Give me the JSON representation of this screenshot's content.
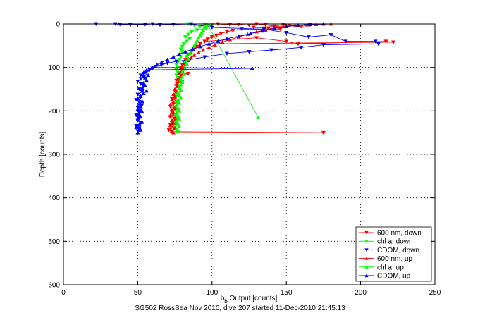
{
  "chart_data": {
    "type": "scatter",
    "caption": "SG502 RossSea Nov 2010, dive 207 started 11-Dec-2010 21:45:13",
    "xlabel_main": "b",
    "xlabel_sub": "b",
    "xlabel_rest": " Output [counts]",
    "ylabel": "Depth [counts]",
    "xlim": [
      0,
      250
    ],
    "ylim": [
      0,
      600
    ],
    "y_inverted": true,
    "xticks": [
      "0",
      "50",
      "100",
      "150",
      "200",
      "250"
    ],
    "yticks": [
      "0",
      "100",
      "200",
      "300",
      "400",
      "500",
      "600"
    ],
    "grid": true,
    "grid_style": "dotted",
    "legend_position": "bottom-right",
    "colors": {
      "red": "#ff0000",
      "green": "#00ff00",
      "blue": "#0000ff"
    },
    "series": [
      {
        "name": "600 nm, down",
        "color": "#ff0000",
        "marker": "triangle-down",
        "points": [
          [
            104,
            0
          ],
          [
            112,
            2
          ],
          [
            118,
            1
          ],
          [
            125,
            3
          ],
          [
            130,
            0
          ],
          [
            136,
            2
          ],
          [
            142,
            5
          ],
          [
            148,
            1
          ],
          [
            152,
            3
          ],
          [
            160,
            6
          ],
          [
            166,
            2
          ],
          [
            128,
            8
          ],
          [
            138,
            10
          ],
          [
            146,
            12
          ],
          [
            120,
            12
          ],
          [
            114,
            15
          ],
          [
            110,
            18
          ],
          [
            106,
            22
          ],
          [
            103,
            26
          ],
          [
            100,
            30
          ],
          [
            97,
            35
          ],
          [
            95,
            40
          ],
          [
            130,
            32
          ],
          [
            150,
            40
          ],
          [
            158,
            46
          ],
          [
            217,
            40
          ],
          [
            222,
            42
          ],
          [
            92,
            46
          ],
          [
            90,
            52
          ],
          [
            88,
            58
          ],
          [
            86,
            64
          ],
          [
            84,
            70
          ],
          [
            83,
            76
          ],
          [
            82,
            82
          ],
          [
            81,
            88
          ],
          [
            80,
            94
          ],
          [
            79,
            100
          ],
          [
            80,
            106
          ],
          [
            78,
            112
          ],
          [
            84,
            114
          ],
          [
            79,
            118
          ],
          [
            78,
            124
          ],
          [
            76,
            130
          ],
          [
            80,
            132
          ],
          [
            77,
            136
          ],
          [
            76,
            142
          ],
          [
            78,
            148
          ],
          [
            75,
            154
          ],
          [
            77,
            160
          ],
          [
            75,
            166
          ],
          [
            73,
            172
          ],
          [
            76,
            178
          ],
          [
            74,
            184
          ],
          [
            72,
            190
          ],
          [
            75,
            196
          ],
          [
            73,
            202
          ],
          [
            74,
            208
          ],
          [
            72,
            214
          ],
          [
            75,
            220
          ],
          [
            73,
            226
          ],
          [
            72,
            232
          ],
          [
            74,
            238
          ],
          [
            71,
            244
          ],
          [
            73,
            248
          ],
          [
            175,
            250
          ]
        ]
      },
      {
        "name": "chl a, down",
        "color": "#00ff00",
        "marker": "triangle-down",
        "points": [
          [
            84,
            0
          ],
          [
            88,
            3
          ],
          [
            92,
            6
          ],
          [
            95,
            2
          ],
          [
            98,
            5
          ],
          [
            100,
            1
          ],
          [
            96,
            10
          ],
          [
            90,
            14
          ],
          [
            86,
            18
          ],
          [
            84,
            24
          ],
          [
            82,
            30
          ],
          [
            85,
            34
          ],
          [
            83,
            40
          ],
          [
            81,
            46
          ],
          [
            80,
            52
          ],
          [
            79,
            58
          ],
          [
            80,
            64
          ],
          [
            78,
            70
          ],
          [
            79,
            76
          ],
          [
            78,
            82
          ],
          [
            77,
            88
          ],
          [
            76,
            94
          ],
          [
            77,
            100
          ],
          [
            76,
            106
          ],
          [
            77,
            112
          ],
          [
            76,
            118
          ],
          [
            77,
            124
          ],
          [
            78,
            130
          ],
          [
            76,
            136
          ],
          [
            77,
            142
          ],
          [
            78,
            148
          ],
          [
            76,
            154
          ],
          [
            77,
            160
          ],
          [
            76,
            166
          ],
          [
            75,
            172
          ],
          [
            77,
            178
          ],
          [
            76,
            184
          ],
          [
            75,
            190
          ],
          [
            77,
            196
          ],
          [
            76,
            202
          ],
          [
            75,
            208
          ],
          [
            77,
            214
          ],
          [
            76,
            220
          ],
          [
            75,
            226
          ],
          [
            76,
            232
          ],
          [
            75,
            238
          ],
          [
            76,
            244
          ],
          [
            77,
            248
          ]
        ]
      },
      {
        "name": "CDOM, down",
        "color": "#0000ff",
        "marker": "triangle-down",
        "points": [
          [
            22,
            0
          ],
          [
            35,
            0
          ],
          [
            38,
            1
          ],
          [
            45,
            2
          ],
          [
            55,
            1
          ],
          [
            60,
            0
          ],
          [
            65,
            2
          ],
          [
            74,
            1
          ],
          [
            86,
            0
          ],
          [
            100,
            8
          ],
          [
            135,
            12
          ],
          [
            150,
            20
          ],
          [
            165,
            30
          ],
          [
            180,
            25
          ],
          [
            190,
            40
          ],
          [
            210,
            40
          ],
          [
            212,
            46
          ],
          [
            175,
            48
          ],
          [
            160,
            54
          ],
          [
            140,
            60
          ],
          [
            125,
            64
          ],
          [
            110,
            68
          ],
          [
            95,
            76
          ],
          [
            85,
            82
          ],
          [
            76,
            86
          ],
          [
            70,
            90
          ],
          [
            66,
            94
          ],
          [
            62,
            98
          ],
          [
            60,
            102
          ],
          [
            58,
            106
          ],
          [
            56,
            110
          ],
          [
            54,
            114
          ],
          [
            52,
            118
          ],
          [
            54,
            122
          ],
          [
            52,
            126
          ],
          [
            50,
            132
          ],
          [
            52,
            138
          ],
          [
            54,
            144
          ],
          [
            51,
            150
          ],
          [
            53,
            156
          ],
          [
            50,
            162
          ],
          [
            52,
            168
          ],
          [
            49,
            174
          ],
          [
            51,
            180
          ],
          [
            53,
            186
          ],
          [
            50,
            192
          ],
          [
            52,
            198
          ],
          [
            51,
            204
          ],
          [
            49,
            210
          ],
          [
            51,
            216
          ],
          [
            50,
            222
          ],
          [
            52,
            228
          ],
          [
            49,
            234
          ],
          [
            51,
            240
          ],
          [
            50,
            246
          ]
        ]
      },
      {
        "name": "600 nm, up",
        "color": "#ff0000",
        "marker": "triangle-up",
        "points": [
          [
            74,
            250
          ],
          [
            73,
            246
          ],
          [
            75,
            240
          ],
          [
            72,
            234
          ],
          [
            74,
            228
          ],
          [
            73,
            222
          ],
          [
            75,
            216
          ],
          [
            72,
            210
          ],
          [
            74,
            204
          ],
          [
            73,
            198
          ],
          [
            75,
            192
          ],
          [
            72,
            186
          ],
          [
            74,
            180
          ],
          [
            73,
            174
          ],
          [
            75,
            168
          ],
          [
            74,
            162
          ],
          [
            76,
            156
          ],
          [
            75,
            150
          ],
          [
            77,
            144
          ],
          [
            76,
            138
          ],
          [
            78,
            132
          ],
          [
            77,
            126
          ],
          [
            79,
            120
          ],
          [
            78,
            114
          ],
          [
            80,
            108
          ],
          [
            79,
            102
          ],
          [
            81,
            96
          ],
          [
            82,
            90
          ],
          [
            84,
            84
          ],
          [
            86,
            78
          ],
          [
            88,
            72
          ],
          [
            91,
            66
          ],
          [
            94,
            60
          ],
          [
            98,
            54
          ],
          [
            102,
            48
          ],
          [
            107,
            42
          ],
          [
            112,
            36
          ],
          [
            118,
            30
          ],
          [
            124,
            24
          ],
          [
            130,
            18
          ],
          [
            136,
            14
          ],
          [
            142,
            10
          ],
          [
            148,
            6
          ],
          [
            156,
            4
          ],
          [
            164,
            2
          ],
          [
            170,
            1
          ],
          [
            180,
            0
          ]
        ]
      },
      {
        "name": "chl a, up",
        "color": "#00ff00",
        "marker": "triangle-up",
        "points": [
          [
            77,
            248
          ],
          [
            76,
            242
          ],
          [
            78,
            236
          ],
          [
            77,
            230
          ],
          [
            76,
            224
          ],
          [
            78,
            218
          ],
          [
            77,
            212
          ],
          [
            76,
            206
          ],
          [
            78,
            200
          ],
          [
            77,
            194
          ],
          [
            76,
            188
          ],
          [
            78,
            182
          ],
          [
            77,
            176
          ],
          [
            79,
            170
          ],
          [
            78,
            164
          ],
          [
            77,
            158
          ],
          [
            79,
            152
          ],
          [
            78,
            146
          ],
          [
            79,
            140
          ],
          [
            80,
            134
          ],
          [
            79,
            128
          ],
          [
            80,
            122
          ],
          [
            81,
            116
          ],
          [
            80,
            110
          ],
          [
            82,
            104
          ],
          [
            81,
            98
          ],
          [
            83,
            92
          ],
          [
            82,
            86
          ],
          [
            84,
            80
          ],
          [
            83,
            74
          ],
          [
            85,
            68
          ],
          [
            86,
            62
          ],
          [
            87,
            56
          ],
          [
            88,
            50
          ],
          [
            89,
            44
          ],
          [
            90,
            38
          ],
          [
            91,
            32
          ],
          [
            92,
            26
          ],
          [
            93,
            20
          ],
          [
            94,
            14
          ],
          [
            95,
            8
          ],
          [
            96,
            4
          ],
          [
            97,
            1
          ],
          [
            131,
            215
          ]
        ]
      },
      {
        "name": "CDOM, up",
        "color": "#0000ff",
        "marker": "triangle-up",
        "points": [
          [
            50,
            250
          ],
          [
            52,
            244
          ],
          [
            49,
            238
          ],
          [
            51,
            232
          ],
          [
            53,
            226
          ],
          [
            50,
            220
          ],
          [
            52,
            214
          ],
          [
            51,
            208
          ],
          [
            53,
            202
          ],
          [
            50,
            196
          ],
          [
            52,
            190
          ],
          [
            51,
            184
          ],
          [
            53,
            178
          ],
          [
            50,
            172
          ],
          [
            52,
            166
          ],
          [
            54,
            160
          ],
          [
            56,
            154
          ],
          [
            53,
            148
          ],
          [
            55,
            142
          ],
          [
            54,
            136
          ],
          [
            56,
            130
          ],
          [
            55,
            124
          ],
          [
            57,
            118
          ],
          [
            54,
            112
          ],
          [
            56,
            106
          ],
          [
            127,
            102
          ],
          [
            60,
            100
          ],
          [
            63,
            94
          ],
          [
            66,
            88
          ],
          [
            70,
            82
          ],
          [
            74,
            76
          ],
          [
            78,
            70
          ],
          [
            82,
            64
          ],
          [
            87,
            58
          ],
          [
            92,
            52
          ],
          [
            98,
            46
          ],
          [
            104,
            40
          ],
          [
            110,
            34
          ],
          [
            118,
            28
          ],
          [
            126,
            22
          ],
          [
            134,
            16
          ],
          [
            142,
            10
          ],
          [
            150,
            6
          ],
          [
            158,
            3
          ],
          [
            166,
            1
          ],
          [
            175,
            0
          ]
        ]
      }
    ]
  }
}
